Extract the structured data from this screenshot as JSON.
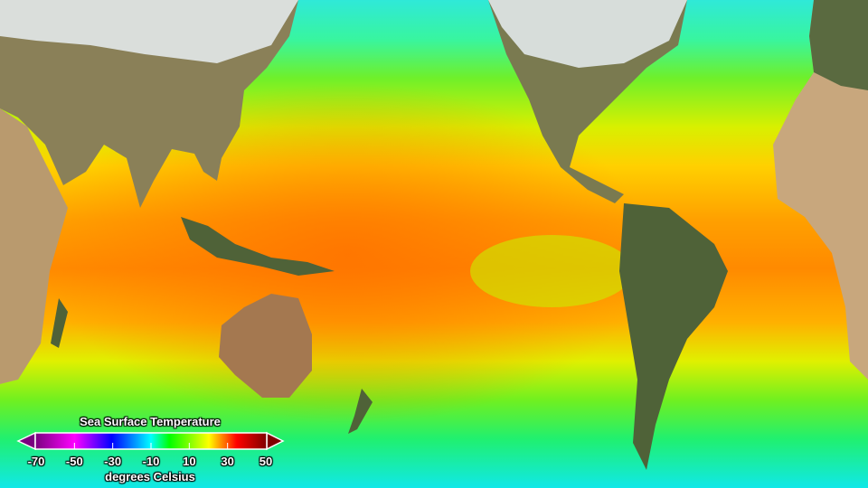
{
  "legend": {
    "title": "Sea Surface Temperature",
    "unit": "degrees Celsius",
    "ticks": [
      "-70",
      "-50",
      "-30",
      "-10",
      "10",
      "30",
      "50"
    ],
    "range": [
      -70,
      50
    ],
    "colors": [
      "#7a0080",
      "#ff00ff",
      "#0000ff",
      "#00ffff",
      "#00ff00",
      "#ffff00",
      "#ff0000",
      "#800000"
    ]
  },
  "map": {
    "projection": "equirectangular, Pacific-centered",
    "land_colors": {
      "desert": "#c8a77d",
      "forest": "#4f6238",
      "ice": "#e8eef2"
    }
  }
}
